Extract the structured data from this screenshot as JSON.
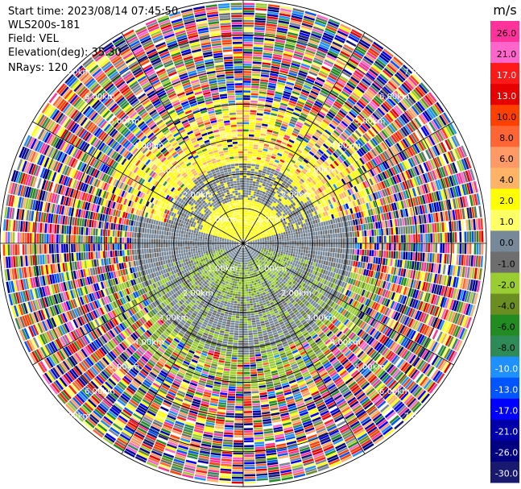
{
  "header": {
    "start_time": "Start time: 2023/08/14 07:45:50",
    "instrument": "WLS200s-181",
    "field": "Field: VEL",
    "elevation": "Elevation(deg): 35.30",
    "nrays": "NRays: 120"
  },
  "chart_data": {
    "type": "ppi",
    "unit": "m/s",
    "range_rings_km": [
      1,
      2,
      3,
      4,
      5,
      6,
      7
    ],
    "range_ring_labels": [
      "1.00km",
      "2.00km",
      "3.00km",
      "4.00km",
      "5.00km",
      "6.00km",
      "7.00km"
    ],
    "max_range_km": 7.0,
    "n_rays": 120,
    "colorbar": {
      "label": "m/s",
      "ticks": [
        "26.0",
        "21.0",
        "17.0",
        "13.0",
        "10.0",
        "8.0",
        "6.0",
        "4.0",
        "2.0",
        "1.0",
        "0.0",
        "-1.0",
        "-2.0",
        "-4.0",
        "-6.0",
        "-8.0",
        "-10.0",
        "-13.0",
        "-17.0",
        "-21.0",
        "-26.0",
        "-30.0"
      ],
      "colors": [
        "#ff3399",
        "#ff66cc",
        "#ff1a1a",
        "#e60000",
        "#ff4000",
        "#ff6633",
        "#ff9966",
        "#ffb366",
        "#ffff00",
        "#ffff66",
        "#778899",
        "#6e6e6e",
        "#9acd32",
        "#6b8e23",
        "#228b22",
        "#2e8b57",
        "#1e90ff",
        "#0055ff",
        "#0000ff",
        "#0000aa",
        "#000080",
        "#191970"
      ]
    }
  }
}
